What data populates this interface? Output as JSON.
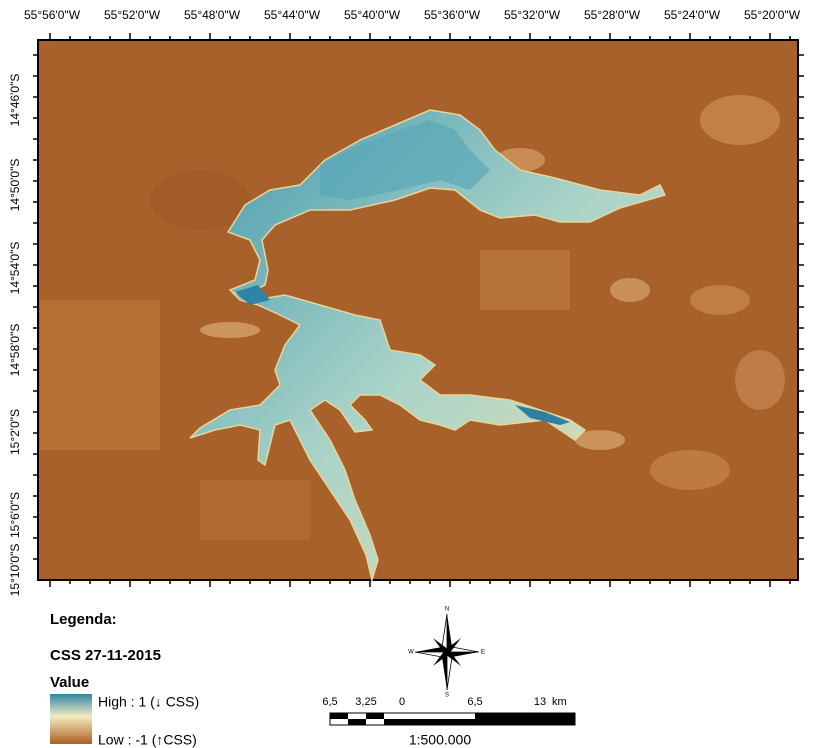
{
  "map": {
    "top_labels": [
      "55°56'0\"W",
      "55°52'0\"W",
      "55°48'0\"W",
      "55°44'0\"W",
      "55°40'0\"W",
      "55°36'0\"W",
      "55°32'0\"W",
      "55°28'0\"W",
      "55°24'0\"W",
      "55°20'0\"W"
    ],
    "left_labels": [
      "14°46'0\"S",
      "14°50'0\"S",
      "14°54'0\"S",
      "14°58'0\"S",
      "15°2'0\"S",
      "15°6'0\"S",
      "15°10'0\"S"
    ],
    "legend": {
      "title": "Legenda:",
      "subtitle": "CSS  27-11-2015",
      "value_heading": "Value",
      "high_label": "High : 1 (↓ CSS)",
      "low_label": "Low : -1 (↑CSS)"
    },
    "north_arrow": {
      "n": "N",
      "s": "S",
      "e": "E",
      "w": "W"
    },
    "scale_bar": {
      "labels": [
        "6,5",
        "3,25",
        "0",
        "6,5",
        "13"
      ],
      "unit": "km",
      "ratio": "1:500.000"
    }
  }
}
